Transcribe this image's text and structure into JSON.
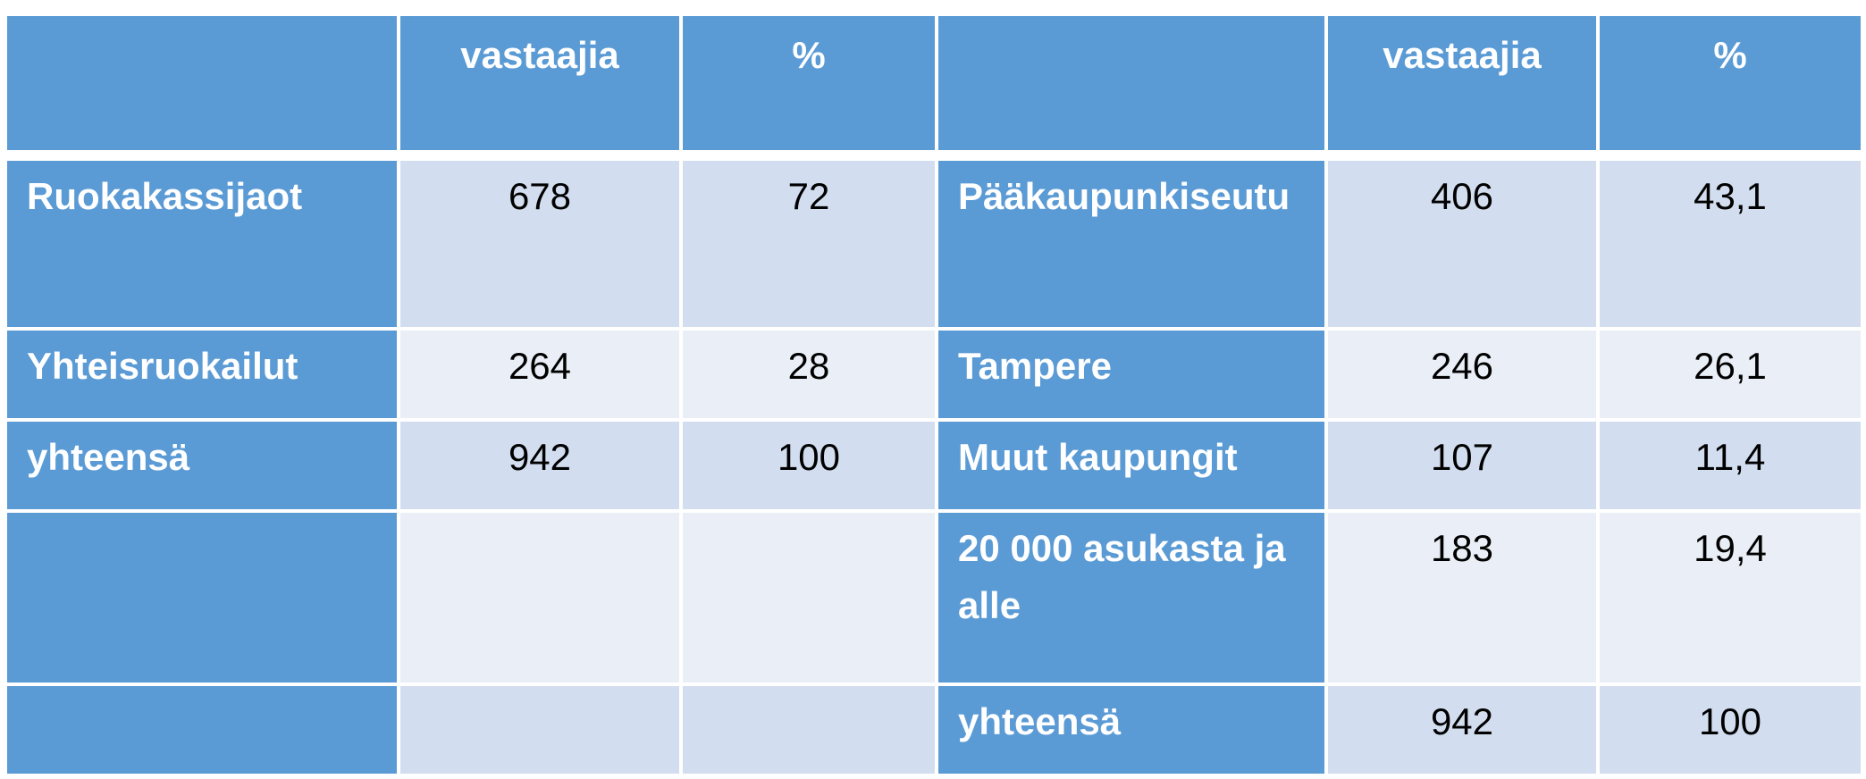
{
  "chart_data": {
    "type": "table",
    "columns": [
      "",
      "vastaajia",
      "%",
      "",
      "vastaajia",
      "%"
    ],
    "rows": [
      [
        "Ruokakassijaot",
        "678",
        "72",
        "Pääkaupunkiseutu",
        "406",
        "43,1"
      ],
      [
        "Yhteisruokailut",
        "264",
        "28",
        "Tampere",
        "246",
        "26,1"
      ],
      [
        "yhteensä",
        "942",
        "100",
        "Muut kaupungit",
        "107",
        "11,4"
      ],
      [
        "",
        "",
        "",
        "20 000 asukasta ja alle",
        "183",
        "19,4"
      ],
      [
        "",
        "",
        "",
        "yhteensä",
        "942",
        "100"
      ]
    ],
    "colors": {
      "header": "#5b9bd5",
      "band_dark": "#d2deef",
      "band_light": "#eaeff7",
      "header_text": "#ffffff"
    }
  }
}
